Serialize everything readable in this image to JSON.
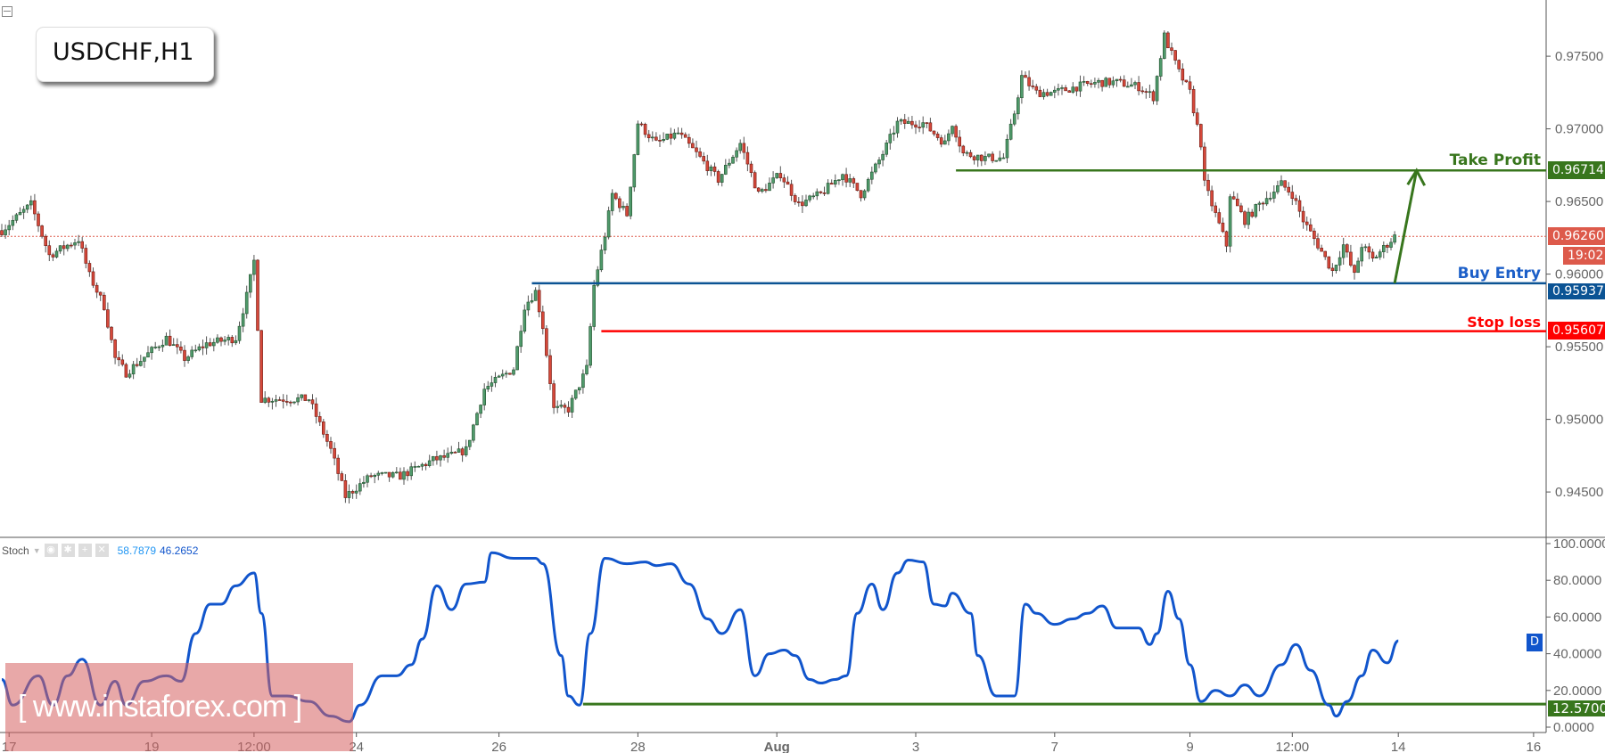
{
  "header": {
    "symbol_label": "USDCHF,H1"
  },
  "watermark": "[ www.instaforex.com ]",
  "indicator": {
    "name": "Stoch",
    "k_value": "58.7879",
    "d_value": "46.2652",
    "d_badge": "D"
  },
  "colors": {
    "up": "#4f9a6b",
    "down": "#d5483a",
    "take_profit": "#38761d",
    "buy_entry": "#0b5394",
    "stop_loss": "#ff0000",
    "current": "#dd5a4b",
    "stoch_line": "#1155cc"
  },
  "chart_data": [
    {
      "type": "candlestick",
      "title": "USDCHF,H1",
      "ylim": [
        0.943,
        0.979
      ],
      "y_ticks": [
        "0.97500",
        "0.97000",
        "0.96500",
        "0.96000",
        "0.95500",
        "0.95000",
        "0.94500"
      ],
      "x_ticks": [
        {
          "bar": 2,
          "label": "17"
        },
        {
          "bar": 41,
          "label": "19"
        },
        {
          "bar": 69,
          "label": "12:00"
        },
        {
          "bar": 97,
          "label": "24"
        },
        {
          "bar": 136,
          "label": "26"
        },
        {
          "bar": 174,
          "label": "28"
        },
        {
          "bar": 212,
          "label": "Aug"
        },
        {
          "bar": 250,
          "label": "3"
        },
        {
          "bar": 288,
          "label": "7"
        },
        {
          "bar": 325,
          "label": "9"
        },
        {
          "bar": 353,
          "label": "12:00"
        },
        {
          "bar": 382,
          "label": "14"
        },
        {
          "bar": 419,
          "label": "16"
        }
      ],
      "close_path": [
        [
          0,
          0.963
        ],
        [
          8,
          0.9648
        ],
        [
          13,
          0.9613
        ],
        [
          21,
          0.9624
        ],
        [
          24,
          0.9599
        ],
        [
          28,
          0.9578
        ],
        [
          31,
          0.9542
        ],
        [
          34,
          0.9532
        ],
        [
          45,
          0.9556
        ],
        [
          50,
          0.9542
        ],
        [
          56,
          0.9552
        ],
        [
          64,
          0.9556
        ],
        [
          67,
          0.9585
        ],
        [
          69,
          0.9609
        ],
        [
          70,
          0.9564
        ],
        [
          71,
          0.9514
        ],
        [
          84,
          0.9514
        ],
        [
          90,
          0.9479
        ],
        [
          94,
          0.9447
        ],
        [
          101,
          0.9461
        ],
        [
          109,
          0.9461
        ],
        [
          118,
          0.9472
        ],
        [
          123,
          0.9475
        ],
        [
          127,
          0.9479
        ],
        [
          132,
          0.9521
        ],
        [
          140,
          0.9535
        ],
        [
          143,
          0.9578
        ],
        [
          146,
          0.9588
        ],
        [
          148,
          0.9564
        ],
        [
          151,
          0.9507
        ],
        [
          155,
          0.9507
        ],
        [
          160,
          0.9535
        ],
        [
          162,
          0.9592
        ],
        [
          165,
          0.9627
        ],
        [
          167,
          0.9655
        ],
        [
          171,
          0.9641
        ],
        [
          174,
          0.9704
        ],
        [
          179,
          0.969
        ],
        [
          185,
          0.9697
        ],
        [
          190,
          0.9683
        ],
        [
          196,
          0.9665
        ],
        [
          202,
          0.969
        ],
        [
          207,
          0.9655
        ],
        [
          213,
          0.9669
        ],
        [
          218,
          0.9648
        ],
        [
          224,
          0.9655
        ],
        [
          230,
          0.9669
        ],
        [
          235,
          0.9655
        ],
        [
          241,
          0.9683
        ],
        [
          245,
          0.9704
        ],
        [
          252,
          0.9704
        ],
        [
          258,
          0.969
        ],
        [
          260,
          0.9704
        ],
        [
          263,
          0.9683
        ],
        [
          269,
          0.968
        ],
        [
          274,
          0.968
        ],
        [
          277,
          0.9711
        ],
        [
          279,
          0.9736
        ],
        [
          283,
          0.9725
        ],
        [
          288,
          0.9725
        ],
        [
          294,
          0.9729
        ],
        [
          300,
          0.9732
        ],
        [
          305,
          0.9732
        ],
        [
          311,
          0.9729
        ],
        [
          315,
          0.9722
        ],
        [
          318,
          0.9764
        ],
        [
          322,
          0.9739
        ],
        [
          325,
          0.9725
        ],
        [
          328,
          0.969
        ],
        [
          329,
          0.9662
        ],
        [
          332,
          0.9641
        ],
        [
          335,
          0.962
        ],
        [
          336,
          0.9655
        ],
        [
          340,
          0.9637
        ],
        [
          344,
          0.9648
        ],
        [
          350,
          0.9662
        ],
        [
          353,
          0.9655
        ],
        [
          356,
          0.9637
        ],
        [
          360,
          0.962
        ],
        [
          364,
          0.9602
        ],
        [
          367,
          0.962
        ],
        [
          370,
          0.9599
        ],
        [
          372,
          0.962
        ],
        [
          375,
          0.961
        ],
        [
          381,
          0.9626
        ]
      ],
      "levels": [
        {
          "name": "Take Profit",
          "value": 0.96714,
          "label": "0.96714",
          "from_bar": 261,
          "color": "#38761d"
        },
        {
          "name": "Buy Entry",
          "value": 0.95937,
          "label": "0.95937",
          "from_bar": 145,
          "color": "#0b5394"
        },
        {
          "name": "Stop loss",
          "value": 0.95607,
          "label": "0.95607",
          "from_bar": 164,
          "color": "#ff0000"
        }
      ],
      "current_price": {
        "value": 0.9626,
        "label": "0.96260",
        "countdown": "19:02"
      },
      "arrow": {
        "from": [
          381,
          0.95937
        ],
        "to": [
          387,
          0.96714
        ],
        "color": "#38761d"
      }
    },
    {
      "type": "line",
      "name": "Stoch",
      "ylim": [
        0,
        100
      ],
      "y_ticks": [
        "100.0000",
        "80.0000",
        "60.0000",
        "40.0000",
        "20.0000",
        "0.0000"
      ],
      "level": {
        "value": 12.57,
        "label": "12.5700",
        "from_bar": 159
      },
      "d_path": [
        [
          0,
          26
        ],
        [
          3,
          12
        ],
        [
          10,
          28
        ],
        [
          14,
          12
        ],
        [
          18,
          28
        ],
        [
          22,
          37
        ],
        [
          27,
          12
        ],
        [
          31,
          25
        ],
        [
          34,
          12
        ],
        [
          39,
          25
        ],
        [
          45,
          28
        ],
        [
          49,
          25
        ],
        [
          53,
          51
        ],
        [
          57,
          67
        ],
        [
          60,
          67
        ],
        [
          64,
          77
        ],
        [
          69,
          84
        ],
        [
          71,
          62
        ],
        [
          74,
          17
        ],
        [
          78,
          17
        ],
        [
          84,
          14
        ],
        [
          90,
          6
        ],
        [
          95,
          3
        ],
        [
          98,
          12
        ],
        [
          104,
          28
        ],
        [
          108,
          28
        ],
        [
          112,
          34
        ],
        [
          115,
          48
        ],
        [
          119,
          77
        ],
        [
          123,
          64
        ],
        [
          127,
          78
        ],
        [
          132,
          79
        ],
        [
          134,
          95
        ],
        [
          140,
          92
        ],
        [
          146,
          92
        ],
        [
          148,
          89
        ],
        [
          153,
          39
        ],
        [
          155,
          17
        ],
        [
          158,
          12
        ],
        [
          161,
          51
        ],
        [
          165,
          92
        ],
        [
          171,
          89
        ],
        [
          176,
          90
        ],
        [
          179,
          88
        ],
        [
          183,
          89
        ],
        [
          188,
          78
        ],
        [
          193,
          59
        ],
        [
          197,
          51
        ],
        [
          202,
          64
        ],
        [
          206,
          28
        ],
        [
          210,
          40
        ],
        [
          214,
          42
        ],
        [
          217,
          39
        ],
        [
          221,
          26
        ],
        [
          224,
          24
        ],
        [
          228,
          26
        ],
        [
          231,
          28
        ],
        [
          234,
          62
        ],
        [
          238,
          78
        ],
        [
          241,
          64
        ],
        [
          245,
          84
        ],
        [
          248,
          91
        ],
        [
          252,
          90
        ],
        [
          255,
          67
        ],
        [
          258,
          66
        ],
        [
          260,
          73
        ],
        [
          265,
          62
        ],
        [
          267,
          39
        ],
        [
          272,
          17
        ],
        [
          277,
          17
        ],
        [
          280,
          67
        ],
        [
          283,
          62
        ],
        [
          288,
          56
        ],
        [
          293,
          59
        ],
        [
          297,
          62
        ],
        [
          301,
          66
        ],
        [
          305,
          54
        ],
        [
          311,
          54
        ],
        [
          314,
          45
        ],
        [
          316,
          51
        ],
        [
          319,
          74
        ],
        [
          322,
          59
        ],
        [
          325,
          34
        ],
        [
          328,
          14
        ],
        [
          332,
          20
        ],
        [
          336,
          17
        ],
        [
          340,
          23
        ],
        [
          344,
          17
        ],
        [
          350,
          34
        ],
        [
          354,
          45
        ],
        [
          358,
          31
        ],
        [
          363,
          12
        ],
        [
          365,
          6
        ],
        [
          368,
          14
        ],
        [
          372,
          28
        ],
        [
          375,
          42
        ],
        [
          379,
          35
        ],
        [
          382,
          47
        ]
      ]
    }
  ]
}
